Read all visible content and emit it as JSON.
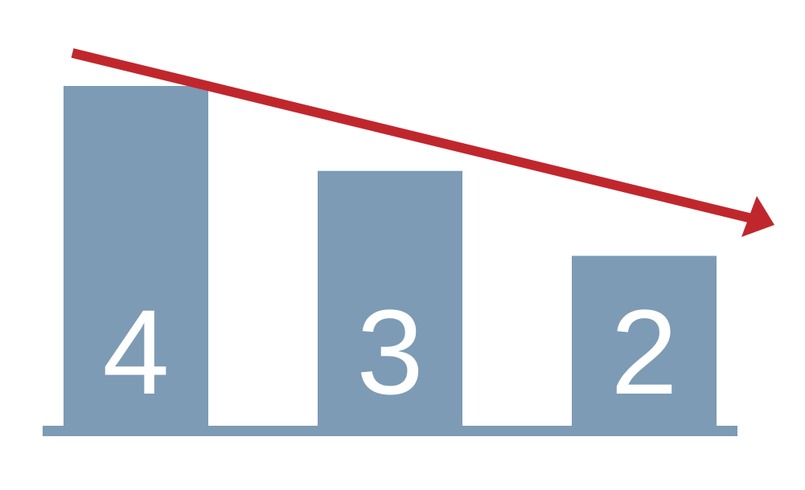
{
  "chart_data": {
    "type": "bar",
    "categories": [
      "",
      "",
      ""
    ],
    "values": [
      4,
      3,
      2
    ],
    "data_labels": [
      "4",
      "3",
      "2"
    ],
    "title": "",
    "xlabel": "",
    "ylabel": "",
    "ylim": [
      0,
      4
    ],
    "grid": false,
    "legend": "none",
    "annotations": [
      {
        "type": "trend-arrow",
        "direction": "decreasing"
      }
    ]
  },
  "colors": {
    "bar": "#7d9bb5",
    "baseline": "#7d9bb5",
    "arrow": "#c0272d",
    "label": "#ffffff",
    "background": "#ffffff"
  }
}
